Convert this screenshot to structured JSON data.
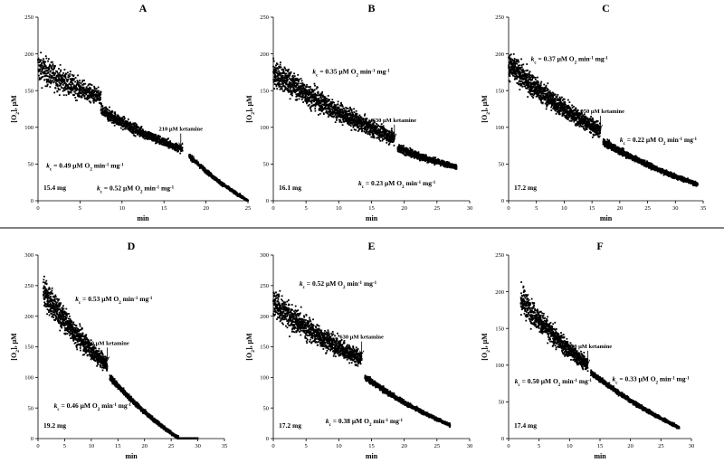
{
  "chart_data": [
    {
      "type": "scatter",
      "title": "A",
      "xlabel": "min",
      "ylabel": "[O2], μM",
      "xlim": [
        0,
        25
      ],
      "ylim": [
        0,
        250
      ],
      "xticks": [
        0,
        5,
        10,
        15,
        20,
        25
      ],
      "yticks": [
        0,
        50,
        100,
        150,
        200,
        250
      ],
      "mass_label": "15.4 mg",
      "rate_labels": [
        {
          "text": "kc = 0.49 μM O2 min-1 mg-1",
          "x": 1,
          "y": 45
        },
        {
          "text": "kc = 0.52 μM O2 min-1 mg-1",
          "x": 7,
          "y": 14
        }
      ],
      "injection": {
        "text": "210 μM ketamine",
        "x": 17,
        "y": 72
      },
      "segments": [
        {
          "x0": 0,
          "x1": 7.5,
          "y0": 182,
          "y1": 140,
          "noise": 17
        },
        {
          "x0": 7.5,
          "x1": 17.2,
          "y0": 123,
          "y1": 70,
          "noise": 8
        },
        {
          "x0": 18,
          "x1": 25,
          "y0": 61,
          "y1": 0,
          "noise": 3
        }
      ]
    },
    {
      "type": "scatter",
      "title": "B",
      "xlabel": "min",
      "ylabel": "[O2], μM",
      "xlim": [
        0,
        30
      ],
      "ylim": [
        0,
        250
      ],
      "xticks": [
        0,
        5,
        10,
        15,
        20,
        25,
        30
      ],
      "yticks": [
        0,
        50,
        100,
        150,
        200,
        250
      ],
      "mass_label": "16.1 mg",
      "rate_labels": [
        {
          "text": "kc = 0.35 μM O2 min-1 mg-1",
          "x": 6,
          "y": 173
        },
        {
          "text": "kc = 0.23 μM O2 min-1 mg-1",
          "x": 13,
          "y": 21
        }
      ],
      "injection": {
        "text": "630 μM ketamine",
        "x": 18.5,
        "y": 84
      },
      "segments": [
        {
          "x0": 0,
          "x1": 18.5,
          "y0": 175,
          "y1": 85,
          "noise": 15
        },
        {
          "x0": 19,
          "x1": 28,
          "y0": 72,
          "y1": 46,
          "noise": 5
        }
      ]
    },
    {
      "type": "scatter",
      "title": "C",
      "xlabel": "min",
      "ylabel": "[O2], μM",
      "xlim": [
        0,
        35
      ],
      "ylim": [
        0,
        250
      ],
      "xticks": [
        0,
        5,
        10,
        15,
        20,
        25,
        30,
        35
      ],
      "yticks": [
        0,
        50,
        100,
        150,
        200,
        250
      ],
      "mass_label": "17.2 mg",
      "rate_labels": [
        {
          "text": "kc = 0.37 μM O2 min-1 mg-1",
          "x": 4,
          "y": 190
        },
        {
          "text": "kc = 0.22 μM O2 min-1 mg-1",
          "x": 20,
          "y": 80
        }
      ],
      "injection": {
        "text": "1,050 μM ketamine",
        "x": 16.5,
        "y": 96
      },
      "segments": [
        {
          "x0": 0,
          "x1": 16.5,
          "y0": 185,
          "y1": 95,
          "noise": 15
        },
        {
          "x0": 17,
          "x1": 34,
          "y0": 80,
          "y1": 22,
          "noise": 4
        }
      ]
    },
    {
      "type": "scatter",
      "title": "D",
      "xlabel": "min",
      "ylabel": "[O2], μM",
      "xlim": [
        0,
        35
      ],
      "ylim": [
        0,
        300
      ],
      "xticks": [
        0,
        5,
        10,
        15,
        20,
        25,
        30,
        35
      ],
      "yticks": [
        0,
        50,
        100,
        150,
        200,
        250,
        300
      ],
      "mass_label": "19.2 mg",
      "rate_labels": [
        {
          "text": "kc = 0.53 μM O2 min-1 mg-1",
          "x": 7,
          "y": 225
        },
        {
          "text": "kc = 0.46 μM O2 min-1 mg-1",
          "x": 3,
          "y": 50
        }
      ],
      "injection": {
        "text": "210 μM ketamine",
        "x": 13,
        "y": 125
      },
      "segments": [
        {
          "x0": 1,
          "x1": 13,
          "y0": 240,
          "y1": 120,
          "noise": 20
        },
        {
          "x0": 13.5,
          "x1": 26.5,
          "y0": 100,
          "y1": 0,
          "noise": 4
        },
        {
          "x0": 26.5,
          "x1": 30,
          "y0": 0,
          "y1": 0,
          "noise": 0.5
        }
      ]
    },
    {
      "type": "scatter",
      "title": "E",
      "xlabel": "min",
      "ylabel": "[O2], μM",
      "xlim": [
        0,
        30
      ],
      "ylim": [
        0,
        300
      ],
      "xticks": [
        0,
        5,
        10,
        15,
        20,
        25,
        30
      ],
      "yticks": [
        0,
        50,
        100,
        150,
        200,
        250,
        300
      ],
      "mass_label": "17.2 mg",
      "rate_labels": [
        {
          "text": "kc = 0.52 μM O2 min-1 mg-1",
          "x": 4,
          "y": 250
        },
        {
          "text": "kc = 0.38 μM O2 min-1 mg-1",
          "x": 8,
          "y": 25
        }
      ],
      "injection": {
        "text": "630 μM ketamine",
        "x": 13.5,
        "y": 135
      },
      "segments": [
        {
          "x0": 0,
          "x1": 13.5,
          "y0": 220,
          "y1": 130,
          "noise": 20
        },
        {
          "x0": 14,
          "x1": 27,
          "y0": 100,
          "y1": 22,
          "noise": 4
        }
      ]
    },
    {
      "type": "scatter",
      "title": "F",
      "xlabel": "min",
      "ylabel": "[O2], μM",
      "xlim": [
        0,
        30
      ],
      "ylim": [
        0,
        250
      ],
      "xticks": [
        0,
        5,
        10,
        15,
        20,
        25,
        30
      ],
      "yticks": [
        0,
        50,
        100,
        150,
        200,
        250
      ],
      "mass_label": "17.4 mg",
      "rate_labels": [
        {
          "text": "kc = 0.50 μM O2 min-1 mg-1",
          "x": 1,
          "y": 75
        },
        {
          "text": "kc = 0.33 μM O2 min-1 mg-1",
          "x": 17,
          "y": 78
        }
      ],
      "injection": {
        "text": "1,050 μM ketamine",
        "x": 13,
        "y": 100
      },
      "segments": [
        {
          "x0": 2,
          "x1": 13,
          "y0": 190,
          "y1": 100,
          "noise": 15
        },
        {
          "x0": 13.5,
          "x1": 28,
          "y0": 90,
          "y1": 15,
          "noise": 3
        }
      ]
    }
  ],
  "colors": {
    "points": "#000000",
    "divider": "#000000",
    "background": "#ffffff"
  }
}
